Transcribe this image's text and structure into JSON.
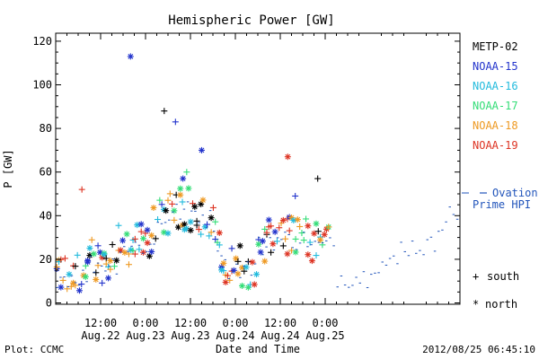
{
  "chart_data": {
    "type": "scatter",
    "title": "Hemispheric Power [GW]",
    "ylabel": "P [GW]",
    "xlabel": "Date and Time",
    "ylim": [
      0,
      125
    ],
    "y_ticks": [
      "0",
      "20",
      "40",
      "60",
      "80",
      "100",
      "120"
    ],
    "x_range_hours": [
      0,
      108
    ],
    "x_ticks": [
      {
        "hour": 12,
        "time": "12:00",
        "date": "Aug.22"
      },
      {
        "hour": 24,
        "time": "0:00",
        "date": "Aug.23"
      },
      {
        "hour": 36,
        "time": "12:00",
        "date": "Aug.23"
      },
      {
        "hour": 48,
        "time": "0:00",
        "date": "Aug.24"
      },
      {
        "hour": 60,
        "time": "12:00",
        "date": "Aug.24"
      },
      {
        "hour": 72,
        "time": "0:00",
        "date": "Aug.25"
      }
    ],
    "grid": false,
    "legend_position": "right",
    "series": [
      {
        "name": "METP-02",
        "color": "#000000"
      },
      {
        "name": "NOAA-15",
        "color": "#2233cc"
      },
      {
        "name": "NOAA-16",
        "color": "#22bbdd"
      },
      {
        "name": "NOAA-17",
        "color": "#33dd77"
      },
      {
        "name": "NOAA-18",
        "color": "#ee9922"
      },
      {
        "name": "NOAA-19",
        "color": "#dd3322"
      }
    ],
    "ovation": {
      "label_line1": "Ovation",
      "label_line2": "Prime HPI",
      "color": "#2255bb"
    },
    "markers": {
      "south_label": "south",
      "north_label": "north"
    },
    "highlights": [
      {
        "series": "NOAA-15",
        "hour": 20,
        "value": 113,
        "hemisphere": "north"
      },
      {
        "series": "METP-02",
        "hour": 29,
        "value": 88,
        "hemisphere": "south"
      },
      {
        "series": "NOAA-15",
        "hour": 32,
        "value": 83,
        "hemisphere": "south"
      },
      {
        "series": "NOAA-15",
        "hour": 39,
        "value": 70,
        "hemisphere": "north"
      },
      {
        "series": "NOAA-19",
        "hour": 62,
        "value": 67,
        "hemisphere": "north"
      },
      {
        "series": "METP-02",
        "hour": 70,
        "value": 57,
        "hemisphere": "south"
      },
      {
        "series": "NOAA-15",
        "hour": 34,
        "value": 57,
        "hemisphere": "north"
      },
      {
        "series": "NOAA-17",
        "hour": 35,
        "value": 60,
        "hemisphere": "south"
      },
      {
        "series": "NOAA-19",
        "hour": 7,
        "value": 52,
        "hemisphere": "south"
      },
      {
        "series": "NOAA-15",
        "hour": 64,
        "value": 49,
        "hemisphere": "south"
      }
    ]
  },
  "footer": {
    "left": "Plot: CCMC",
    "right": "2012/08/25 06:45:10"
  }
}
